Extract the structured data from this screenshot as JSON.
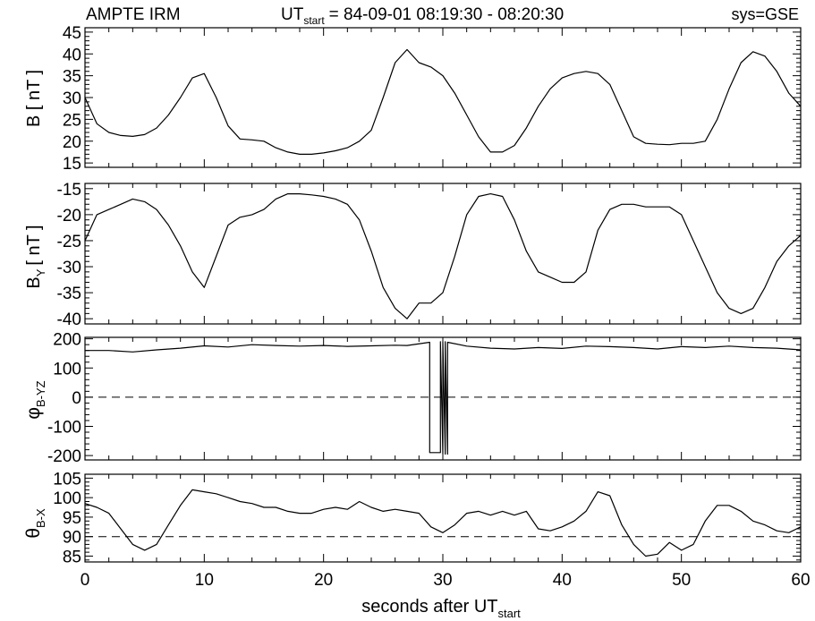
{
  "header": {
    "instrument": "AMPTE IRM",
    "time_prefix": "UT",
    "time_sub": "start",
    "time_range": "= 84-09-01  08:19:30 - 08:20:30",
    "system": "sys=GSE"
  },
  "colors": {
    "line": "#000000",
    "background": "#ffffff"
  },
  "chart_data": [
    {
      "type": "line",
      "ylabel": "B [ nT ]",
      "ylim": [
        14,
        46
      ],
      "yticks": [
        15,
        20,
        25,
        30,
        35,
        40,
        45
      ],
      "series": [
        {
          "x": [
            0,
            1,
            2,
            3,
            4,
            5,
            6,
            7,
            8,
            9,
            10,
            11,
            12,
            13,
            14,
            15,
            16,
            17,
            18,
            19,
            20,
            21,
            22,
            23,
            24,
            25,
            26,
            27,
            28,
            29,
            30,
            31,
            32,
            33,
            34,
            35,
            36,
            37,
            38,
            39,
            40,
            41,
            42,
            43,
            44,
            45,
            46,
            47,
            48,
            49,
            50,
            51,
            52,
            53,
            54,
            55,
            56,
            57,
            58,
            59,
            60
          ],
          "y": [
            30,
            24,
            22,
            21.3,
            21.1,
            21.5,
            23,
            26,
            30,
            34.5,
            35.5,
            30,
            23.5,
            20.5,
            20.3,
            20,
            18.5,
            17.5,
            17,
            17,
            17.3,
            17.8,
            18.5,
            20,
            22.5,
            30,
            38,
            41,
            38,
            37,
            35,
            31,
            26,
            21,
            17.5,
            17.5,
            19,
            23,
            28,
            32,
            34.5,
            35.5,
            36,
            35.5,
            33,
            27,
            21,
            19.5,
            19.3,
            19.2,
            19.5,
            19.5,
            20,
            25,
            32,
            38,
            40.5,
            39.5,
            36,
            31,
            28
          ]
        }
      ]
    },
    {
      "type": "line",
      "ylabel": "B",
      "ylabel_sub": "Y",
      "ylabel_unit": "[ nT ]",
      "ylim": [
        -41,
        -14
      ],
      "yticks": [
        -15,
        -20,
        -25,
        -30,
        -35,
        -40
      ],
      "series": [
        {
          "x": [
            0,
            1,
            2,
            3,
            4,
            5,
            6,
            7,
            8,
            9,
            10,
            11,
            12,
            13,
            14,
            15,
            16,
            17,
            18,
            19,
            20,
            21,
            22,
            23,
            24,
            25,
            26,
            27,
            28,
            29,
            30,
            31,
            32,
            33,
            34,
            35,
            36,
            37,
            38,
            39,
            40,
            41,
            42,
            43,
            44,
            45,
            46,
            47,
            48,
            49,
            50,
            51,
            52,
            53,
            54,
            55,
            56,
            57,
            58,
            59,
            60
          ],
          "y": [
            -25,
            -20,
            -19,
            -18,
            -17,
            -17.5,
            -19,
            -22,
            -26,
            -31,
            -34,
            -28,
            -22,
            -20.5,
            -20,
            -19,
            -17,
            -16,
            -16,
            -16.2,
            -16.5,
            -17,
            -18,
            -21,
            -27,
            -34,
            -38,
            -40,
            -37,
            -37,
            -35,
            -28,
            -20,
            -16.5,
            -16,
            -16.5,
            -21,
            -27,
            -31,
            -32,
            -33,
            -33,
            -31,
            -23,
            -19,
            -18,
            -18,
            -18.5,
            -18.5,
            -18.5,
            -20,
            -25,
            -30,
            -35,
            -38,
            -39,
            -38,
            -34,
            -29,
            -26,
            -24
          ]
        }
      ]
    },
    {
      "type": "line",
      "ylabel": "φ",
      "ylabel_sub": "B-YZ",
      "ylim": [
        -215,
        205
      ],
      "yticks": [
        200,
        100,
        0,
        -100,
        -200
      ],
      "reference_line": 0,
      "series": [
        {
          "x": [
            0,
            2,
            4,
            6,
            8,
            10,
            12,
            14,
            16,
            18,
            20,
            22,
            24,
            26,
            27,
            28.9,
            28.9,
            29.8,
            29.8,
            30,
            30,
            30.2,
            30.2,
            30.4,
            30.4,
            32,
            34,
            36,
            38,
            40,
            42,
            44,
            46,
            48,
            50,
            52,
            54,
            56,
            58,
            60
          ],
          "y": [
            160,
            160,
            155,
            162,
            168,
            176,
            172,
            180,
            177,
            175,
            177,
            174,
            176,
            178,
            177,
            188,
            -190,
            -190,
            190,
            -195,
            190,
            -195,
            190,
            -195,
            188,
            175,
            168,
            165,
            170,
            167,
            175,
            173,
            170,
            165,
            173,
            170,
            175,
            170,
            168,
            162
          ]
        }
      ]
    },
    {
      "type": "line",
      "ylabel": "θ",
      "ylabel_sub": "B-X",
      "ylim": [
        83.5,
        106
      ],
      "yticks": [
        85,
        90,
        95,
        100,
        105
      ],
      "reference_line": 90,
      "series": [
        {
          "x": [
            0,
            1,
            2,
            3,
            4,
            5,
            6,
            7,
            8,
            9,
            10,
            11,
            12,
            13,
            14,
            15,
            16,
            17,
            18,
            19,
            20,
            21,
            22,
            23,
            24,
            25,
            26,
            27,
            28,
            29,
            30,
            31,
            32,
            33,
            34,
            35,
            36,
            37,
            38,
            39,
            40,
            41,
            42,
            43,
            44,
            45,
            46,
            47,
            48,
            49,
            50,
            51,
            52,
            53,
            54,
            55,
            56,
            57,
            58,
            59,
            60
          ],
          "y": [
            98.5,
            97.5,
            96,
            92,
            88,
            86.5,
            88,
            93,
            98,
            102,
            101.5,
            101,
            100,
            99,
            98.5,
            97.5,
            97.5,
            96.5,
            96,
            96,
            97,
            97.5,
            97,
            99,
            97.5,
            96.5,
            97,
            96.5,
            96,
            92.5,
            91,
            93,
            96,
            96.5,
            95.5,
            96.5,
            95.5,
            96.5,
            92,
            91.5,
            92.5,
            94,
            96.5,
            101.5,
            100.5,
            93,
            88,
            85,
            85.5,
            88.5,
            86.5,
            88,
            94,
            98,
            98,
            96.5,
            94,
            93,
            91.5,
            91,
            92.5
          ]
        }
      ]
    }
  ],
  "xaxis": {
    "xlim": [
      0,
      60
    ],
    "xticks": [
      0,
      10,
      20,
      30,
      40,
      50,
      60
    ],
    "xlabel": "seconds after UT",
    "xlabel_sub": "start"
  }
}
